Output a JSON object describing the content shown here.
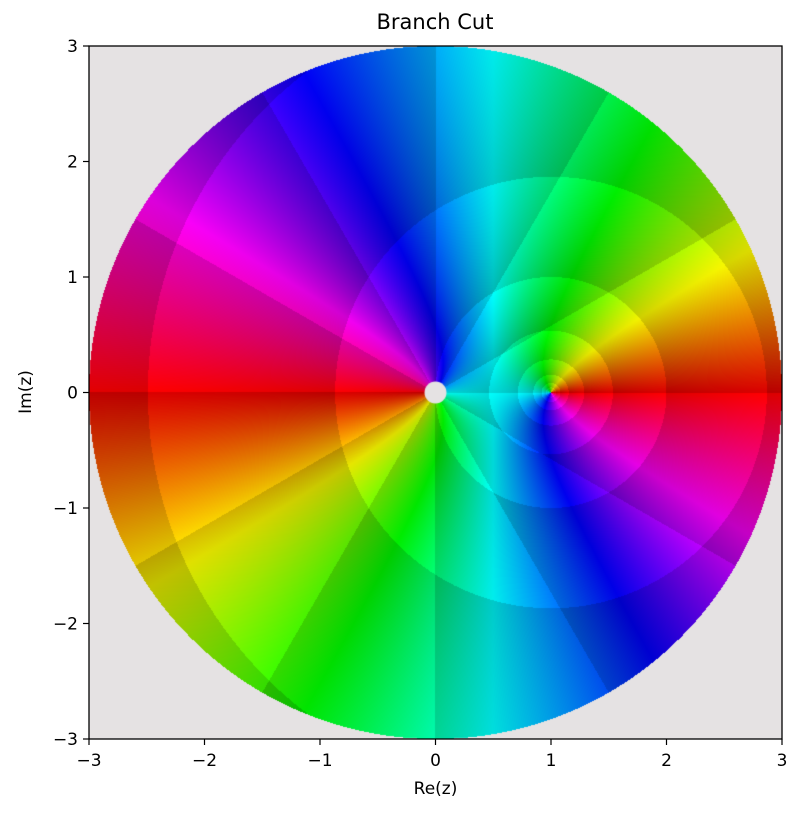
{
  "chart_data": {
    "type": "heatmap",
    "title": "Branch Cut",
    "xlabel": "Re(z)",
    "ylabel": "Im(z)",
    "xlim": [
      -3,
      3
    ],
    "ylim": [
      -3,
      3
    ],
    "xticks": [
      -3,
      -2,
      -1,
      0,
      1,
      2,
      3
    ],
    "yticks": [
      -3,
      -2,
      -1,
      0,
      1,
      2,
      3
    ],
    "xtick_labels": [
      "−3",
      "−2",
      "−1",
      "0",
      "1",
      "2",
      "3"
    ],
    "ytick_labels": [
      "−3",
      "−2",
      "−1",
      "0",
      "1",
      "2",
      "3"
    ],
    "domain": {
      "shape": "disk",
      "center": [
        0,
        0
      ],
      "radius": 3
    },
    "branch_cut": {
      "from": [
        -3,
        0
      ],
      "to": [
        0,
        0
      ],
      "color_jump": "hue wraps from yellow-green (above) to purple (below)"
    },
    "singularity": {
      "x": 0,
      "y": 0,
      "color": "#e5e2e3"
    },
    "zero_point": {
      "x": 1,
      "y": 0
    },
    "coloring": "hue encodes phase, banded",
    "background_color": "#e5e2e3",
    "grid": false,
    "legend": "none"
  }
}
